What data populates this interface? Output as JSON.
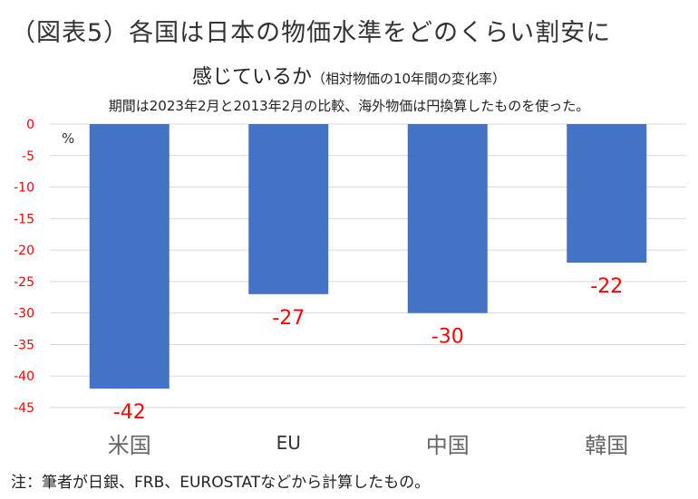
{
  "figure_title": "（図表5）各国は日本の物価水準をどのくらい割安に",
  "chart_data": {
    "type": "bar",
    "title": "感じているか",
    "title_suffix": "（相対物価の10年間の変化率）",
    "subtitle": "期間は2023年2月と2013年2月の比較、海外物価は円換算したものを使った。",
    "ylabel": "%",
    "xlabel": "",
    "categories": [
      "米国",
      "EU",
      "中国",
      "韓国"
    ],
    "values": [
      -42,
      -27,
      -30,
      -22
    ],
    "data_labels": [
      "-42",
      "-27",
      "-30",
      "-22"
    ],
    "ylim": [
      -45,
      0
    ],
    "yticks": [
      0,
      -5,
      -10,
      -15,
      -20,
      -25,
      -30,
      -35,
      -40,
      -45
    ],
    "ytick_labels": [
      "0",
      "-5",
      "-10",
      "-15",
      "-20",
      "-25",
      "-30",
      "-35",
      "-40",
      "-45"
    ],
    "grid": true,
    "bar_color": "#4472C4",
    "label_color": "#FF0000",
    "tick_color": "#FF0000"
  },
  "note": "注：筆者が日銀、FRB、EUROSTATなどから計算したもの。"
}
